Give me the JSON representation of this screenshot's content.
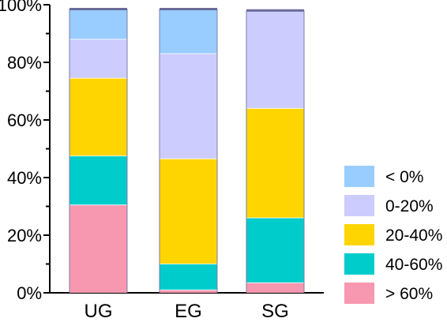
{
  "chart_data": {
    "type": "bar",
    "stacked": true,
    "categories": [
      "UG",
      "EG",
      "SG"
    ],
    "yticks": [
      "0%",
      "20%",
      "40%",
      "60%",
      "80%",
      "100%"
    ],
    "ylim": [
      0,
      100
    ],
    "legend_position": "right",
    "series": [
      {
        "name": "> 60%",
        "color": "#F898B0",
        "values": [
          30.5,
          1.0,
          3.5
        ]
      },
      {
        "name": "40-60%",
        "color": "#00CCCC",
        "values": [
          17.0,
          9.0,
          22.5
        ]
      },
      {
        "name": "20-40%",
        "color": "#FFD500",
        "values": [
          27.0,
          36.5,
          38.0
        ]
      },
      {
        "name": "0-20%",
        "color": "#CCCCFF",
        "values": [
          13.5,
          36.5,
          34.0
        ]
      },
      {
        "name": "< 0%",
        "color": "#99CCFF",
        "values": [
          10.5,
          15.5,
          0.0
        ]
      }
    ]
  }
}
